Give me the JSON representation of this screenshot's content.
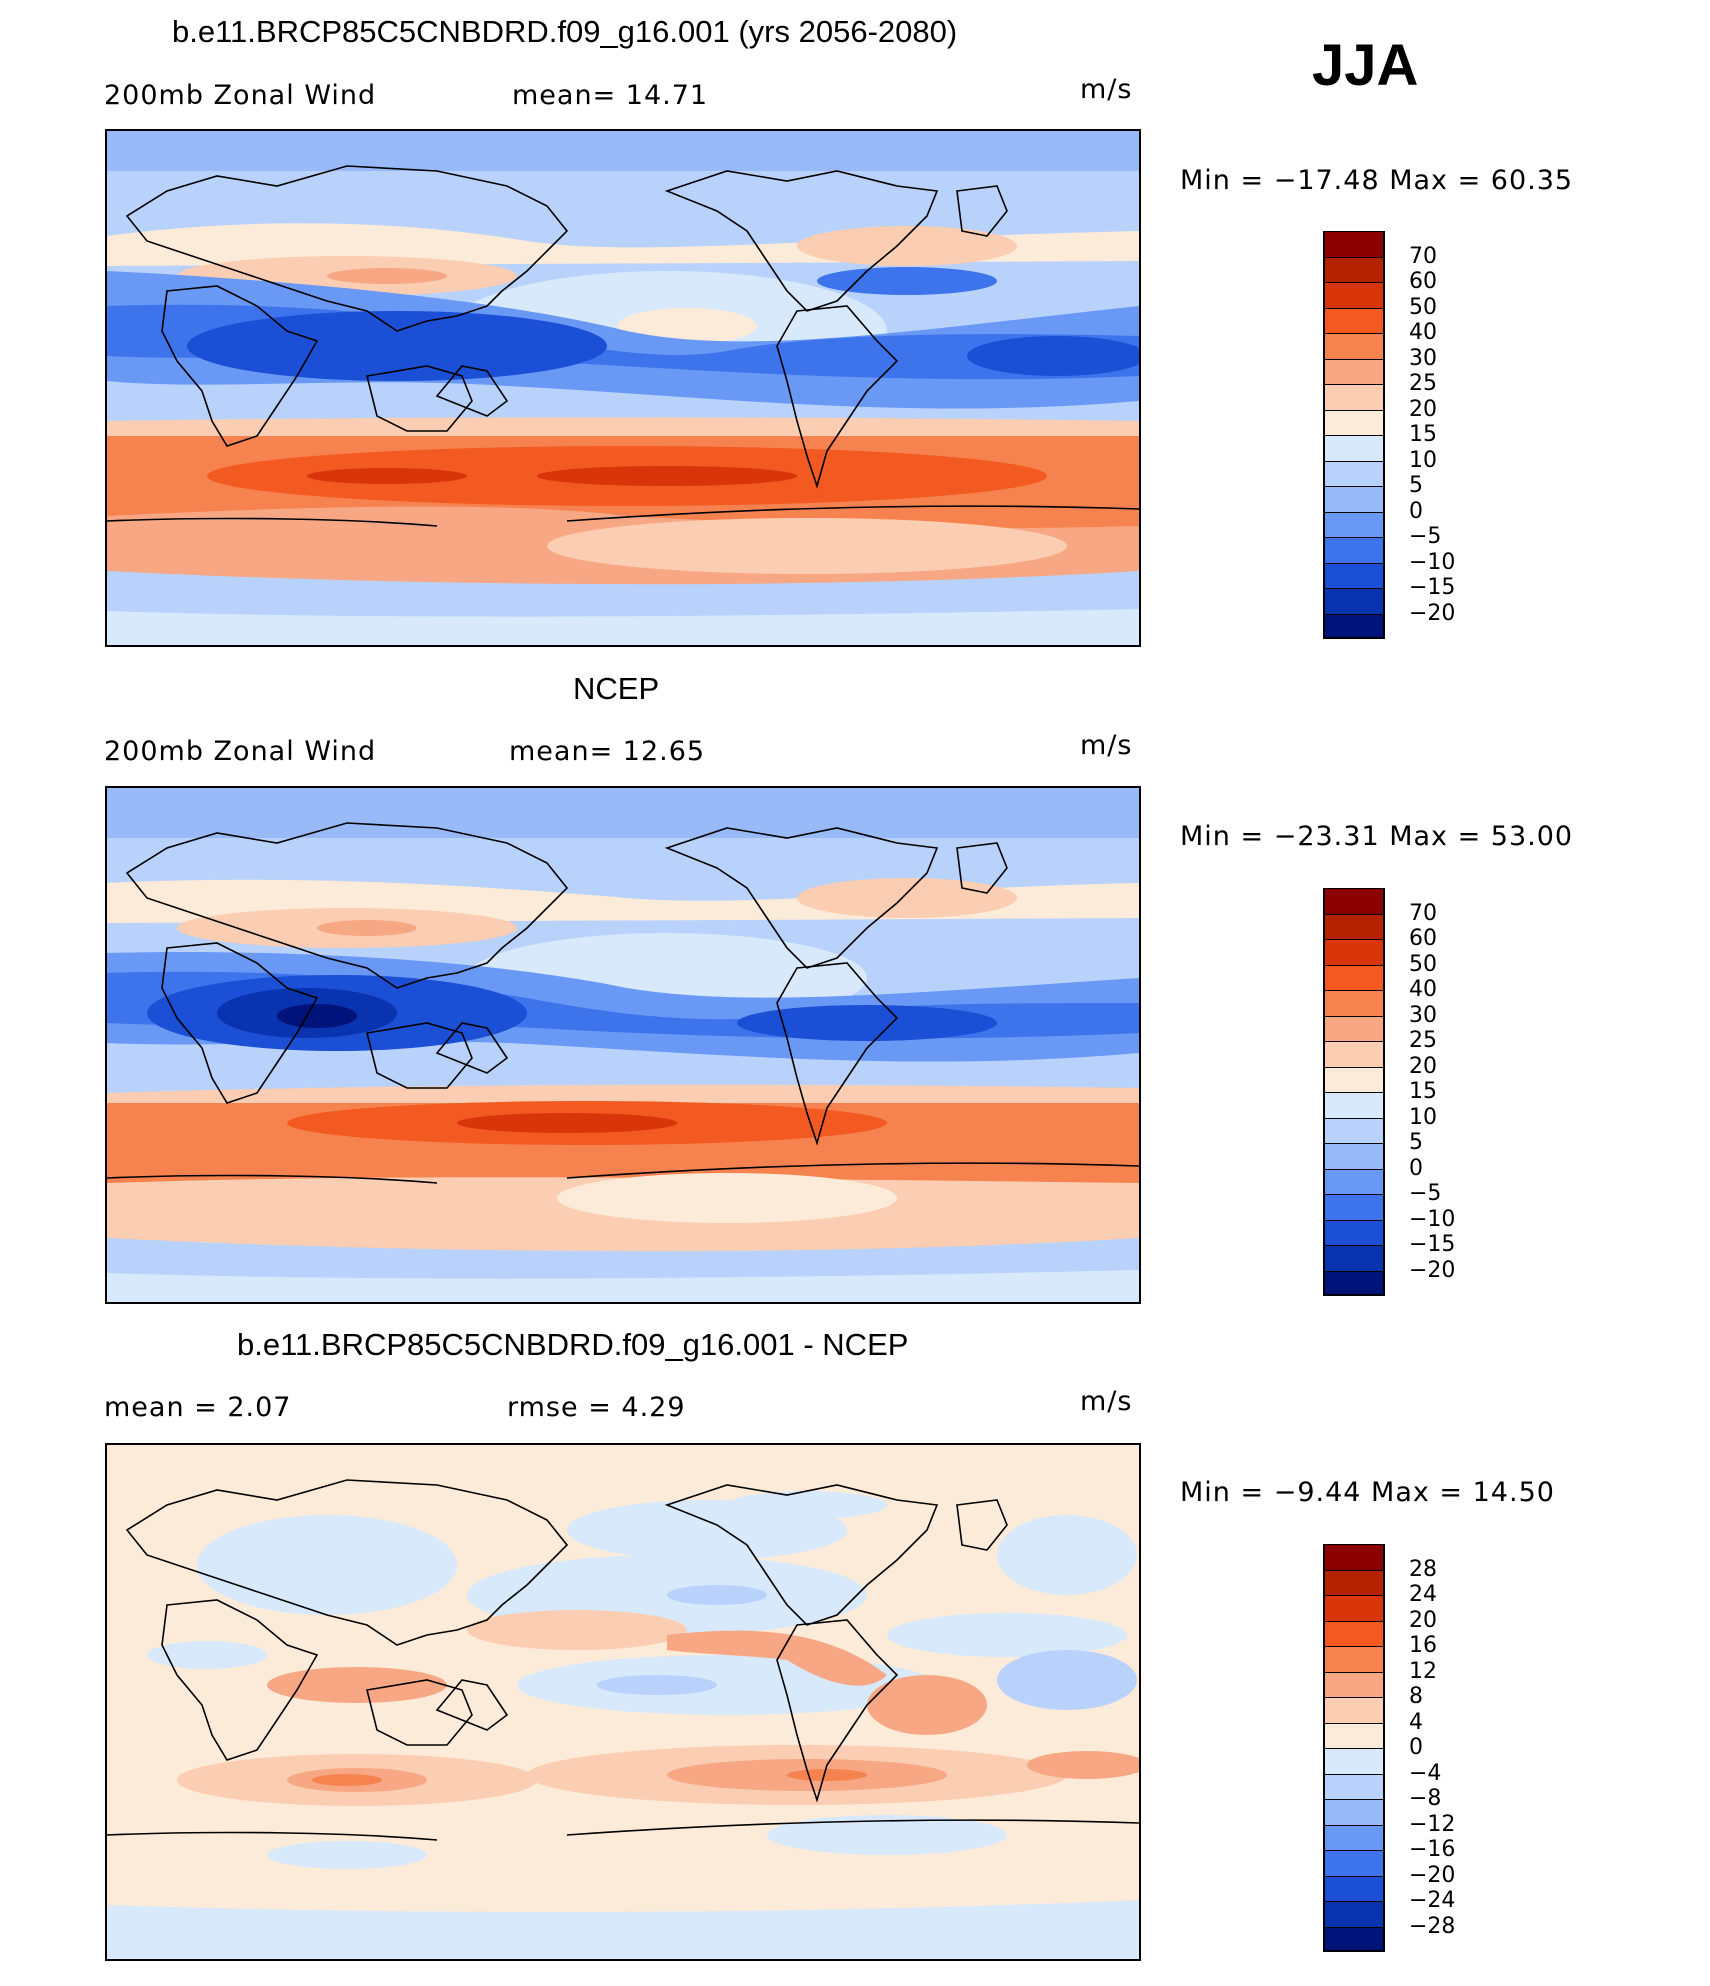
{
  "season": "JJA",
  "panels": [
    {
      "title": "b.e11.BRCP85C5CNBDRD.f09_g16.001 (yrs 2056-2080)",
      "left_label": "200mb  Zonal  Wind",
      "stat_text": "mean=   14.71",
      "units": "m/s",
      "minmax": "Min  =  −17.48  Max  =    60.35",
      "colorbar": {
        "labels": [
          "70",
          "60",
          "50",
          "40",
          "30",
          "25",
          "20",
          "15",
          "10",
          "5",
          "0",
          "−5",
          "−10",
          "−15",
          "−20"
        ],
        "colors": [
          "#8b0000",
          "#b52200",
          "#d8360a",
          "#f25a22",
          "#f6834f",
          "#f7a784",
          "#fbcdb2",
          "#fdebd9",
          "#d7e9fb",
          "#b9d2fb",
          "#99baf9",
          "#6a98f5",
          "#3d74eb",
          "#1a4fd6",
          "#0a33b0",
          "#00137a"
        ]
      }
    },
    {
      "title": "NCEP",
      "left_label": "200mb  Zonal  Wind",
      "stat_text": "mean=   12.65",
      "units": "m/s",
      "minmax": "Min  =  −23.31  Max  =    53.00",
      "colorbar": {
        "labels": [
          "70",
          "60",
          "50",
          "40",
          "30",
          "25",
          "20",
          "15",
          "10",
          "5",
          "0",
          "−5",
          "−10",
          "−15",
          "−20"
        ],
        "colors": [
          "#8b0000",
          "#b52200",
          "#d8360a",
          "#f25a22",
          "#f6834f",
          "#f7a784",
          "#fbcdb2",
          "#fdebd9",
          "#d7e9fb",
          "#b9d2fb",
          "#99baf9",
          "#6a98f5",
          "#3d74eb",
          "#1a4fd6",
          "#0a33b0",
          "#00137a"
        ]
      }
    },
    {
      "title": "b.e11.BRCP85C5CNBDRD.f09_g16.001 - NCEP",
      "left_label": "mean  =     2.07",
      "stat_text": "rmse  =     4.29",
      "units": "m/s",
      "minmax": "Min  =    −9.44  Max  =    14.50",
      "colorbar": {
        "labels": [
          "28",
          "24",
          "20",
          "16",
          "12",
          "8",
          "4",
          "0",
          "−4",
          "−8",
          "−12",
          "−16",
          "−20",
          "−24",
          "−28"
        ],
        "colors": [
          "#8b0000",
          "#b52200",
          "#d8360a",
          "#f25a22",
          "#f6834f",
          "#f7a784",
          "#fbcdb2",
          "#fdebd9",
          "#d7e9fb",
          "#b9d2fb",
          "#99baf9",
          "#6a98f5",
          "#3d74eb",
          "#1a4fd6",
          "#0a33b0",
          "#00137a"
        ]
      }
    }
  ]
}
